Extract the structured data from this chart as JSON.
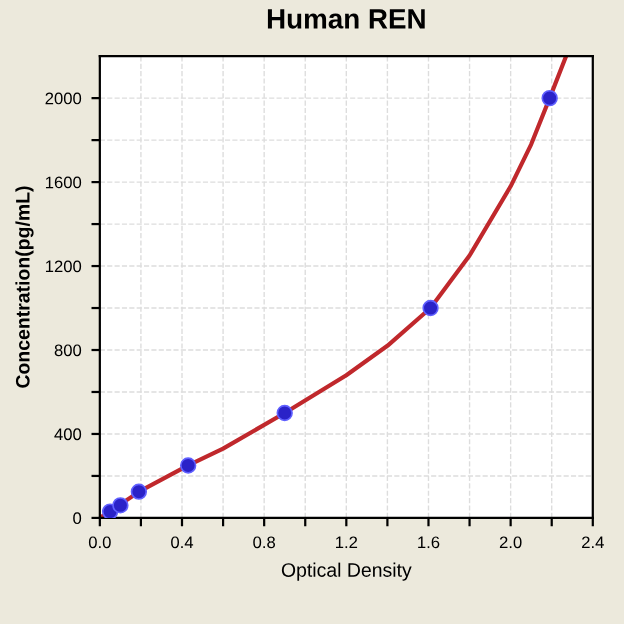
{
  "chart_data": {
    "type": "scatter",
    "title": "Human REN",
    "xlabel": "Optical Density",
    "ylabel": "Concentration(pg/mL)",
    "series": [
      {
        "type": "line",
        "color": "#c0282c",
        "x": [
          0,
          0.2,
          0.43,
          0.6,
          0.9,
          1.2,
          1.4,
          1.61,
          1.8,
          2.0,
          2.1,
          2.19,
          2.27
        ],
        "values": [
          0,
          130,
          250,
          330,
          500,
          680,
          820,
          1000,
          1250,
          1580,
          1780,
          2000,
          2200
        ],
        "marker": "none"
      },
      {
        "color": "#2a22c8",
        "x": [
          0.05,
          0.1,
          0.19,
          0.43,
          0.9,
          1.61,
          2.19
        ],
        "values": [
          30,
          60,
          125,
          250,
          500,
          1000,
          2000
        ],
        "marker": "circle"
      }
    ],
    "xlim": [
      0,
      2.4
    ],
    "ylim": [
      0,
      2200
    ],
    "xticks": [
      {
        "value": 0,
        "label": "0.0"
      },
      {
        "value": 0.2,
        "label": null
      },
      0.4,
      {
        "value": 0.6,
        "label": null
      },
      0.8,
      {
        "value": 1.0,
        "label": null
      },
      1.2,
      {
        "value": 1.4,
        "label": null
      },
      1.6,
      {
        "value": 1.8,
        "label": null
      },
      {
        "value": 2.0,
        "label": "2.0"
      },
      {
        "value": 2.2,
        "label": null
      },
      2.4
    ],
    "yticks": [
      0,
      {
        "value": 200,
        "label": null
      },
      400,
      {
        "value": 600,
        "label": null
      },
      800,
      {
        "value": 1000,
        "label": null
      },
      1200,
      {
        "value": 1400,
        "label": null
      },
      1600,
      {
        "value": 1800,
        "label": null
      },
      2000
    ],
    "grid": true
  }
}
